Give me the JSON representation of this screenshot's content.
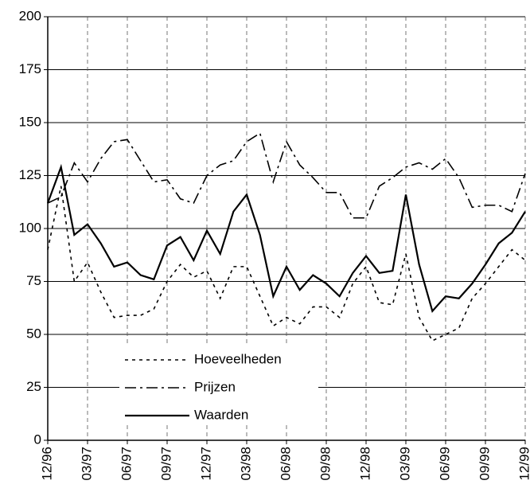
{
  "chart_data": {
    "type": "line",
    "categories": [
      "12/96",
      null,
      null,
      "03/97",
      null,
      null,
      "06/97",
      null,
      null,
      "09/97",
      null,
      null,
      "12/97",
      null,
      null,
      "03/98",
      null,
      null,
      "06/98",
      null,
      null,
      "09/98",
      null,
      null,
      "12/98",
      null,
      null,
      "03/99",
      null,
      null,
      "06/99",
      null,
      null,
      "09/99",
      null,
      null,
      "12/99"
    ],
    "series": [
      {
        "name": "Hoeveelheden",
        "color": "#000000",
        "dash": "4,5",
        "width": 1.6,
        "values": [
          90,
          120,
          75,
          84,
          70,
          58,
          59,
          59,
          62,
          75,
          83,
          77,
          80,
          67,
          82,
          82,
          68,
          54,
          58,
          55,
          63,
          63,
          58,
          74,
          82,
          65,
          64,
          88,
          58,
          47,
          50,
          53,
          67,
          74,
          82,
          90,
          85
        ]
      },
      {
        "name": "Prijzen",
        "color": "#000000",
        "dash": "14,5,3,5",
        "width": 1.6,
        "values": [
          112,
          115,
          131,
          122,
          133,
          141,
          142,
          132,
          122,
          123,
          114,
          112,
          125,
          130,
          132,
          141,
          145,
          122,
          141,
          130,
          124,
          117,
          117,
          105,
          105,
          120,
          124,
          129,
          131,
          128,
          133,
          124,
          110,
          111,
          111,
          108,
          126
        ]
      },
      {
        "name": "Waarden",
        "color": "#000000",
        "dash": "none",
        "width": 2.2,
        "values": [
          112,
          129,
          97,
          102,
          93,
          82,
          84,
          78,
          76,
          92,
          96,
          85,
          99,
          88,
          108,
          116,
          97,
          68,
          82,
          71,
          78,
          74,
          68,
          79,
          87,
          79,
          80,
          116,
          83,
          61,
          68,
          67,
          74,
          83,
          93,
          98,
          108
        ]
      }
    ],
    "ylim": [
      0,
      200
    ],
    "yticks": [
      0,
      25,
      50,
      75,
      100,
      125,
      150,
      175,
      200
    ],
    "grid": true
  }
}
